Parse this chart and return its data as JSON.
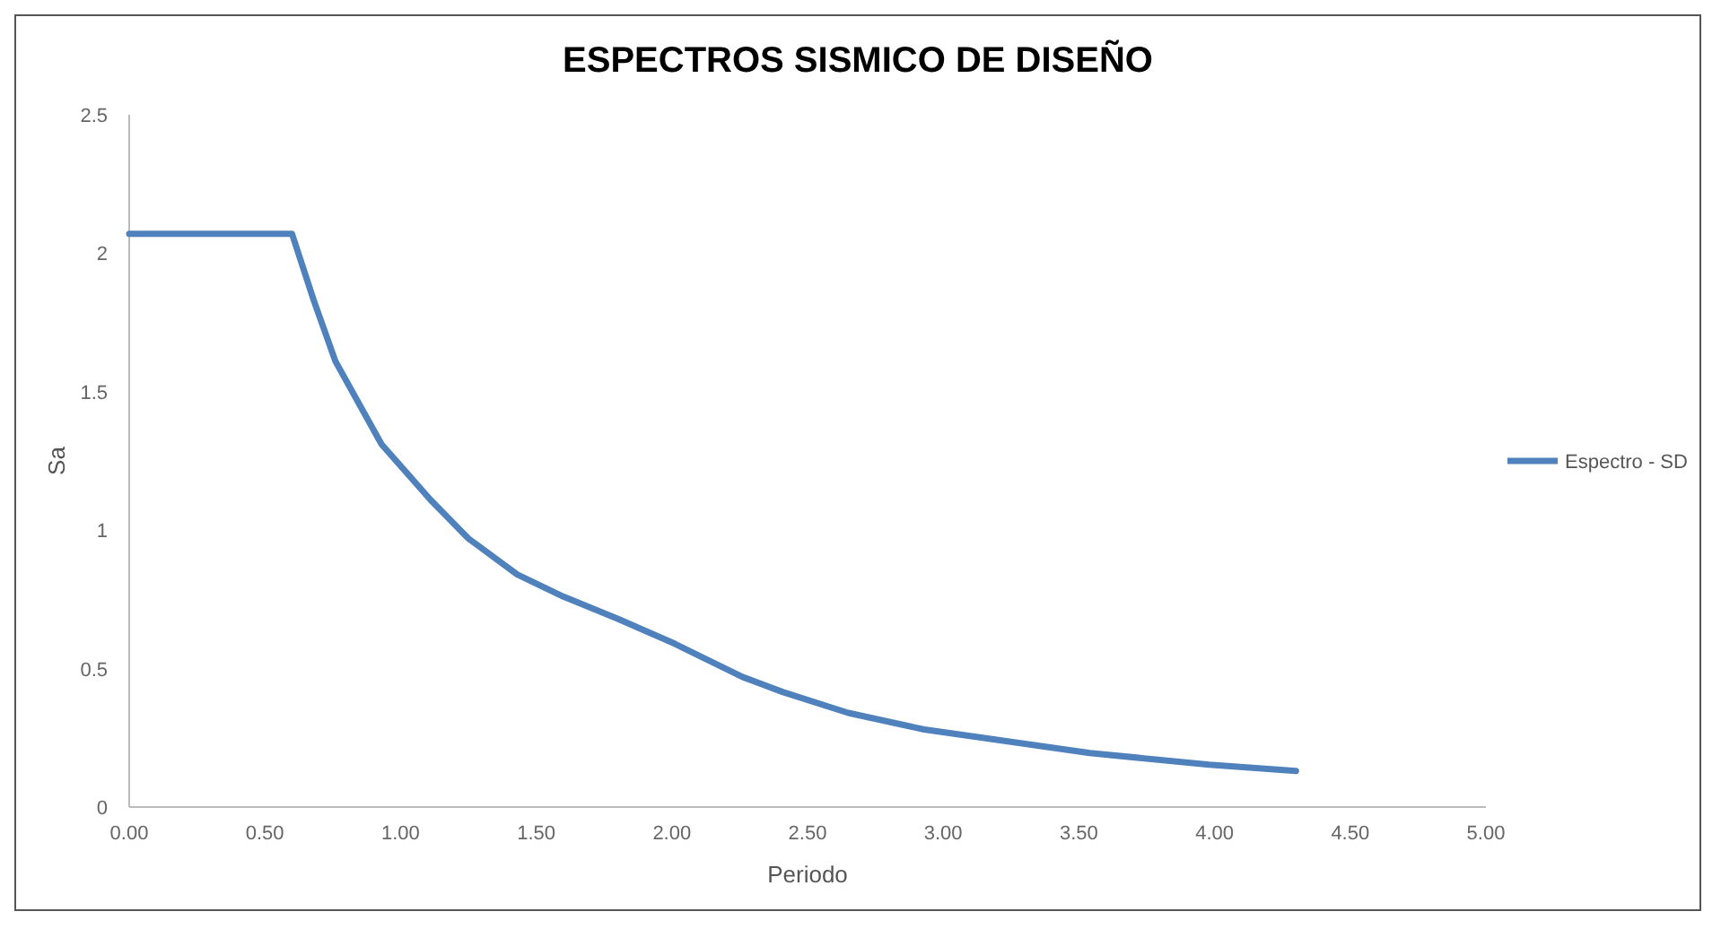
{
  "chart_data": {
    "type": "line",
    "title": "ESPECTROS SISMICO DE DISEÑO",
    "xlabel": "Periodo",
    "ylabel": "Sa",
    "x": [
      0,
      0.6,
      0.68,
      0.76,
      0.93,
      1.11,
      1.25,
      1.43,
      1.6,
      1.8,
      2.01,
      2.26,
      2.41,
      2.65,
      2.93,
      3.54,
      3.98,
      4.3
    ],
    "series": [
      {
        "name": "Espectro - SD",
        "color": "#4f81bd",
        "values": [
          2.07,
          2.07,
          1.83,
          1.61,
          1.31,
          1.11,
          0.97,
          0.84,
          0.76,
          0.68,
          0.59,
          0.47,
          0.415,
          0.34,
          0.28,
          0.195,
          0.153,
          0.13
        ]
      }
    ],
    "xlim": [
      0,
      5
    ],
    "xticks": [
      {
        "value": 0,
        "label": "0.00"
      },
      {
        "value": 0.5,
        "label": "0.50"
      },
      {
        "value": 1,
        "label": "1.00"
      },
      {
        "value": 1.5,
        "label": "1.50"
      },
      {
        "value": 2,
        "label": "2.00"
      },
      {
        "value": 2.5,
        "label": "2.50"
      },
      {
        "value": 3,
        "label": "3.00"
      },
      {
        "value": 3.5,
        "label": "3.50"
      },
      {
        "value": 4,
        "label": "4.00"
      },
      {
        "value": 4.5,
        "label": "4.50"
      },
      {
        "value": 5,
        "label": "5.00"
      }
    ],
    "ylim": [
      0,
      2.5
    ],
    "yticks": [
      0,
      0.5,
      1,
      1.5,
      2,
      2.5
    ],
    "grid": false,
    "legend": "right",
    "marker": "none",
    "line_style": "solid"
  }
}
